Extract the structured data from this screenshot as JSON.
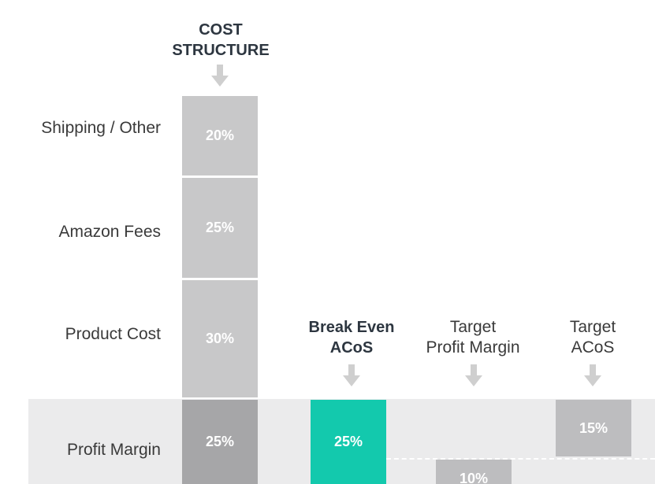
{
  "chart_data": {
    "type": "bar",
    "title": "COST STRUCTURE",
    "title_lines": [
      "COST",
      "STRUCTURE"
    ],
    "categories": [
      "Shipping / Other",
      "Amazon Fees",
      "Product Cost",
      "Profit Margin"
    ],
    "cost_structure": [
      {
        "label": "Shipping / Other",
        "value": 20,
        "display": "20%"
      },
      {
        "label": "Amazon Fees",
        "value": 25,
        "display": "25%"
      },
      {
        "label": "Product Cost",
        "value": 30,
        "display": "30%"
      },
      {
        "label": "Profit Margin",
        "value": 25,
        "display": "25%"
      }
    ],
    "columns": [
      {
        "key": "break_even",
        "title_lines": [
          "Break Even",
          "ACoS"
        ],
        "bold": true,
        "value": 25,
        "display": "25%",
        "color": "#13c9ad"
      },
      {
        "key": "target_profit",
        "title_lines": [
          "Target",
          "Profit Margin"
        ],
        "bold": false,
        "value": 10,
        "display": "10%",
        "color": "#bdbdbf"
      },
      {
        "key": "target_acos",
        "title_lines": [
          "Target",
          "ACoS"
        ],
        "bold": false,
        "value": 15,
        "display": "15%",
        "color": "#bdbdbf"
      }
    ],
    "colors": {
      "segment": "#c8c8c9",
      "profit_segment": "#a6a6a8",
      "break_even": "#13c9ad",
      "highlight_band": "#ebebec",
      "arrow": "#cfcfcf"
    }
  }
}
